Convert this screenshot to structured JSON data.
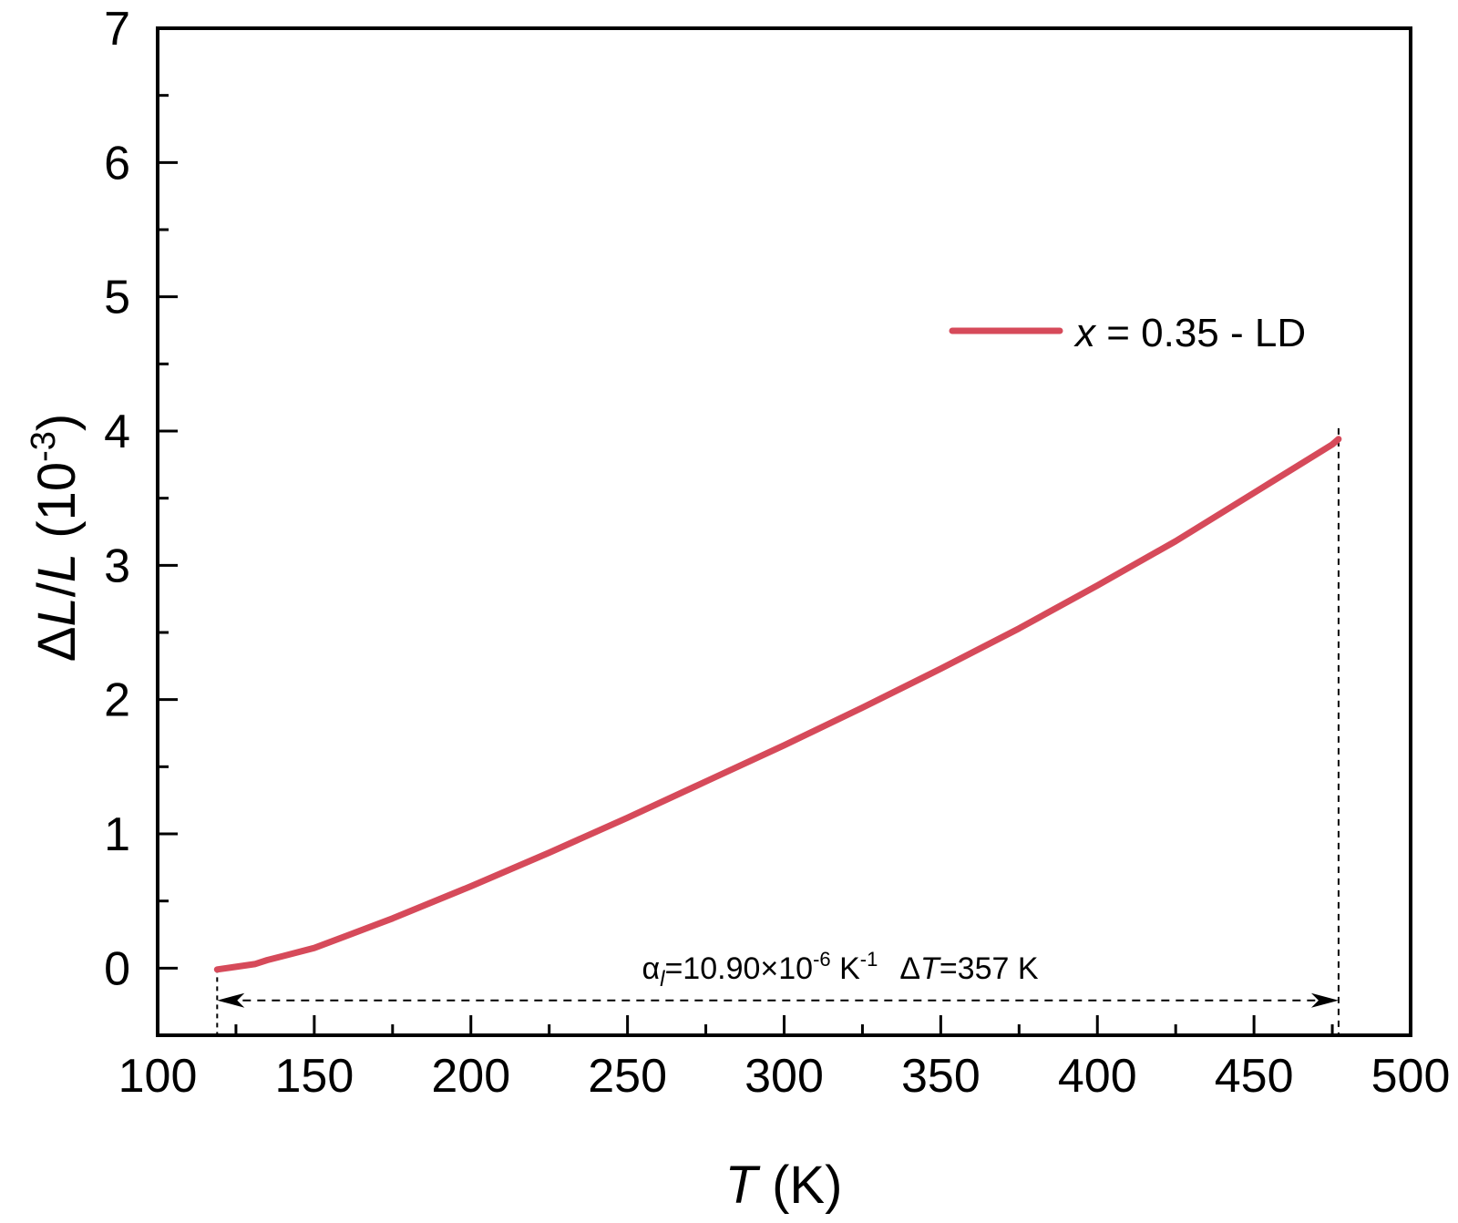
{
  "chart_data": {
    "type": "line",
    "xlim": [
      100,
      500
    ],
    "ylim": [
      -0.5,
      7
    ],
    "x_ticks": [
      "100",
      "150",
      "200",
      "250",
      "300",
      "350",
      "400",
      "450",
      "500"
    ],
    "y_ticks": [
      "0",
      "1",
      "2",
      "3",
      "4",
      "5",
      "6",
      "7"
    ],
    "xlabel": {
      "var": "T",
      "unit": " (K)"
    },
    "ylabel": {
      "delta": "Δ",
      "l1": "L",
      "slash": "/",
      "l2": "L",
      "unit_open": " (10",
      "unit_exp": "-3",
      "unit_close": ")"
    },
    "grid": false,
    "legend": {
      "placement": "top-right"
    },
    "series": [
      {
        "name": "x = 0.35 - LD",
        "name_var": "x",
        "name_rest": " = 0.35 - LD",
        "color": "#d64a5a",
        "x": [
          119,
          125,
          131,
          135,
          140,
          150,
          175,
          200,
          225,
          250,
          275,
          300,
          325,
          350,
          375,
          400,
          425,
          450,
          475,
          477
        ],
        "y": [
          -0.01,
          0.01,
          0.03,
          0.06,
          0.09,
          0.15,
          0.37,
          0.61,
          0.86,
          1.12,
          1.39,
          1.66,
          1.94,
          2.23,
          2.53,
          2.85,
          3.18,
          3.54,
          3.9,
          3.94
        ]
      }
    ],
    "annotation": {
      "x_range": [
        119,
        477
      ],
      "alpha_symbol": "α",
      "alpha_sub": "l",
      "alpha_eq": "=10.90×10",
      "alpha_exp": "-6",
      "alpha_unit": " K",
      "alpha_unit_exp": "-1",
      "dT_delta": "Δ",
      "dT_var": "T",
      "dT_rest": "=357 K"
    }
  }
}
